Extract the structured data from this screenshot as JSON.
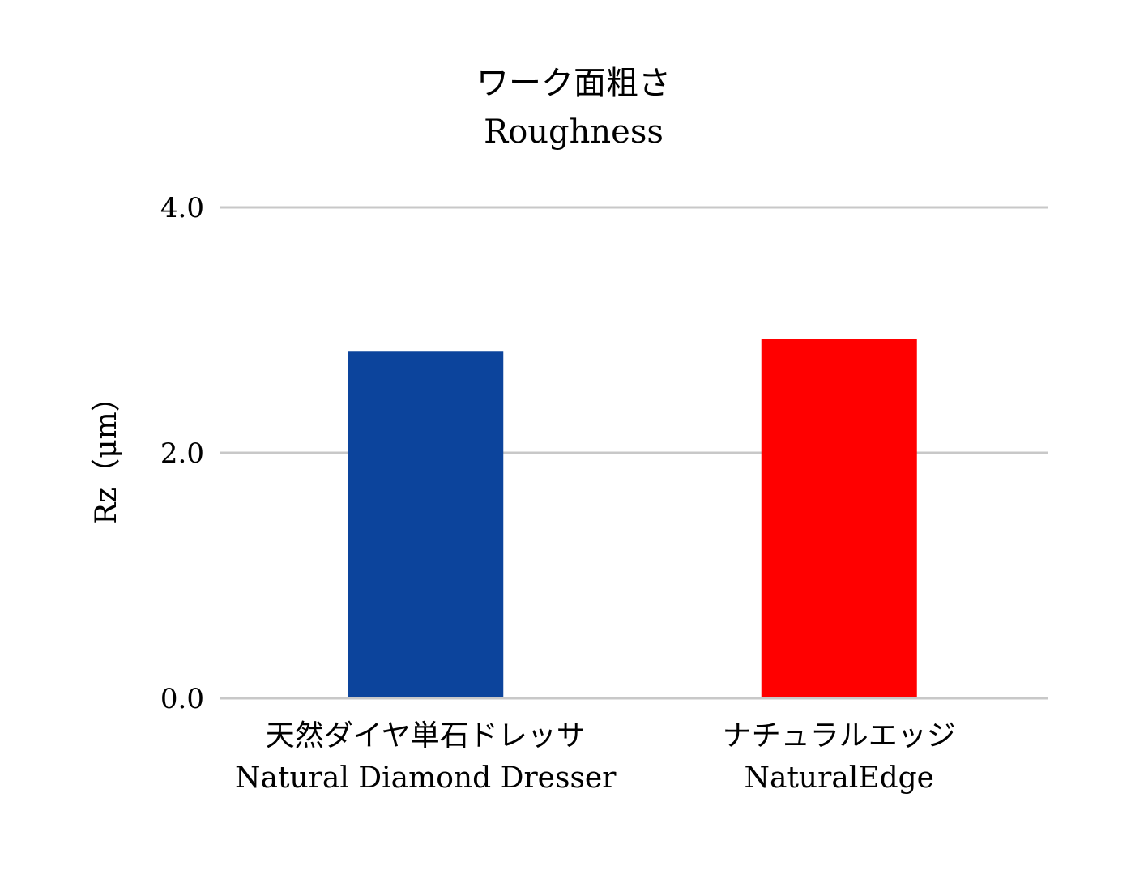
{
  "chart_data": {
    "type": "bar",
    "title": "ワーク面粗さ",
    "subtitle": "Roughness",
    "ylabel": "Rz（μm）",
    "xlabel": "",
    "ylim": [
      0,
      4.0
    ],
    "yticks": [
      "0.0",
      "2.0",
      "4.0"
    ],
    "ytick_values": [
      0,
      2.0,
      4.0
    ],
    "grid": true,
    "categories": [
      {
        "line1": "天然ダイヤ単石ドレッサ",
        "line2": "Natural Diamond Dresser"
      },
      {
        "line1": "ナチュラルエッジ",
        "line2": "NaturalEdge"
      }
    ],
    "values": [
      2.83,
      2.93
    ],
    "colors": [
      "#0c449c",
      "#ff0000"
    ]
  }
}
